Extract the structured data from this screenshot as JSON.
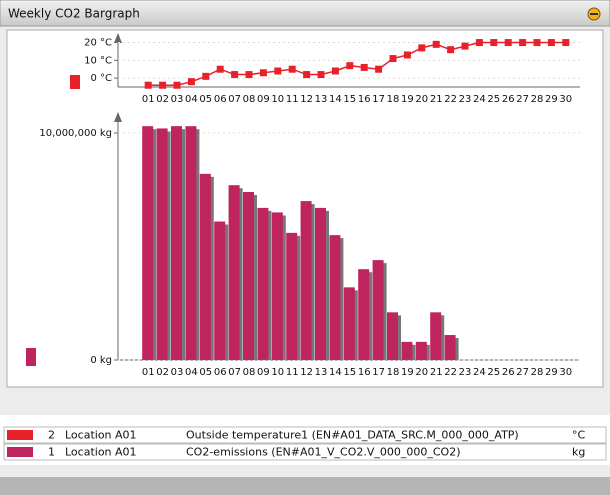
{
  "window_title": "Weekly CO2 Bargraph",
  "chart_data": [
    {
      "type": "line",
      "categories": [
        "01",
        "02",
        "03",
        "04",
        "05",
        "06",
        "07",
        "08",
        "09",
        "10",
        "11",
        "12",
        "13",
        "14",
        "15",
        "16",
        "17",
        "18",
        "19",
        "20",
        "21",
        "22",
        "23",
        "24",
        "25",
        "26",
        "27",
        "28",
        "29",
        "30"
      ],
      "series": [
        {
          "name": "Outside temperature1",
          "color": "#e8202a",
          "values": [
            -4,
            -4,
            -4,
            -2,
            1,
            5,
            2,
            2,
            3,
            4,
            5,
            2,
            2,
            4,
            7,
            6,
            5,
            11,
            13,
            17,
            19,
            16,
            18,
            20,
            20,
            20,
            20,
            20,
            20,
            20
          ]
        }
      ],
      "ylim": [
        -5,
        22
      ],
      "yticks": [
        {
          "value": 0,
          "label": "0 °C"
        },
        {
          "value": 10,
          "label": "10 °C"
        },
        {
          "value": 20,
          "label": "20 °C"
        }
      ]
    },
    {
      "type": "bar",
      "categories": [
        "01",
        "02",
        "03",
        "04",
        "05",
        "06",
        "07",
        "08",
        "09",
        "10",
        "11",
        "12",
        "13",
        "14",
        "15",
        "16",
        "17",
        "18",
        "19",
        "20",
        "21",
        "22",
        "23",
        "24",
        "25",
        "26",
        "27",
        "28",
        "29",
        "30"
      ],
      "series": [
        {
          "name": "CO2-emissions",
          "color": "#c0245f",
          "values": [
            10300000,
            10200000,
            10300000,
            10300000,
            8200000,
            6100000,
            7700000,
            7400000,
            6700000,
            6500000,
            5600000,
            7000000,
            6700000,
            5500000,
            3200000,
            4000000,
            4400000,
            2100000,
            800000,
            800000,
            2100000,
            1100000,
            null,
            null,
            null,
            null,
            null,
            null,
            null,
            null
          ]
        }
      ],
      "ylim": [
        0,
        10660000
      ],
      "yticks": [
        {
          "value": 0,
          "label": "0 kg"
        },
        {
          "value": 10000000,
          "label": "10,000,000 kg"
        }
      ]
    }
  ],
  "legend_rows": [
    {
      "color": "#e8202a",
      "id": "2",
      "location": "Location A01",
      "series": "Outside temperature1 (EN#A01_DATA_SRC.M_000_000_ATP)",
      "unit": "°C"
    },
    {
      "color": "#c0245f",
      "id": "1",
      "location": "Location A01",
      "series": "CO2-emissions (EN#A01_V_CO2.V_000_000_CO2)",
      "unit": "kg"
    }
  ]
}
